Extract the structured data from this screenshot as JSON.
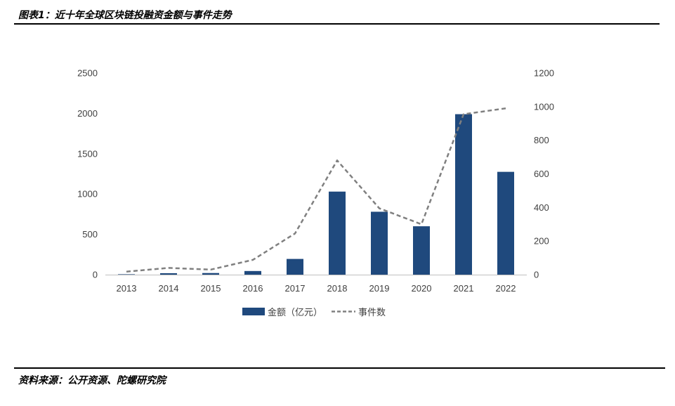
{
  "figure": {
    "title": "图表1：近十年全球区块链投融资金额与事件走势",
    "source": "资料来源：公开资源、陀螺研究院"
  },
  "chart_data": {
    "type": "bar+line",
    "categories": [
      "2013",
      "2014",
      "2015",
      "2016",
      "2017",
      "2018",
      "2019",
      "2020",
      "2021",
      "2022"
    ],
    "series": [
      {
        "name": "金额（亿元）",
        "type": "bar",
        "axis": "left",
        "color": "#1f497d",
        "values": [
          5,
          18,
          20,
          45,
          195,
          1030,
          780,
          600,
          1990,
          1275
        ]
      },
      {
        "name": "事件数",
        "type": "line",
        "axis": "right",
        "color": "#808080",
        "dash": "dashed",
        "values": [
          18,
          40,
          30,
          88,
          245,
          680,
          395,
          300,
          955,
          990
        ]
      }
    ],
    "y_left": {
      "lim": [
        0,
        2500
      ],
      "ticks": [
        0,
        500,
        1000,
        1500,
        2000,
        2500
      ]
    },
    "y_right": {
      "lim": [
        0,
        1200
      ],
      "ticks": [
        0,
        200,
        400,
        600,
        800,
        1000,
        1200
      ]
    },
    "legend_position": "bottom-center"
  }
}
